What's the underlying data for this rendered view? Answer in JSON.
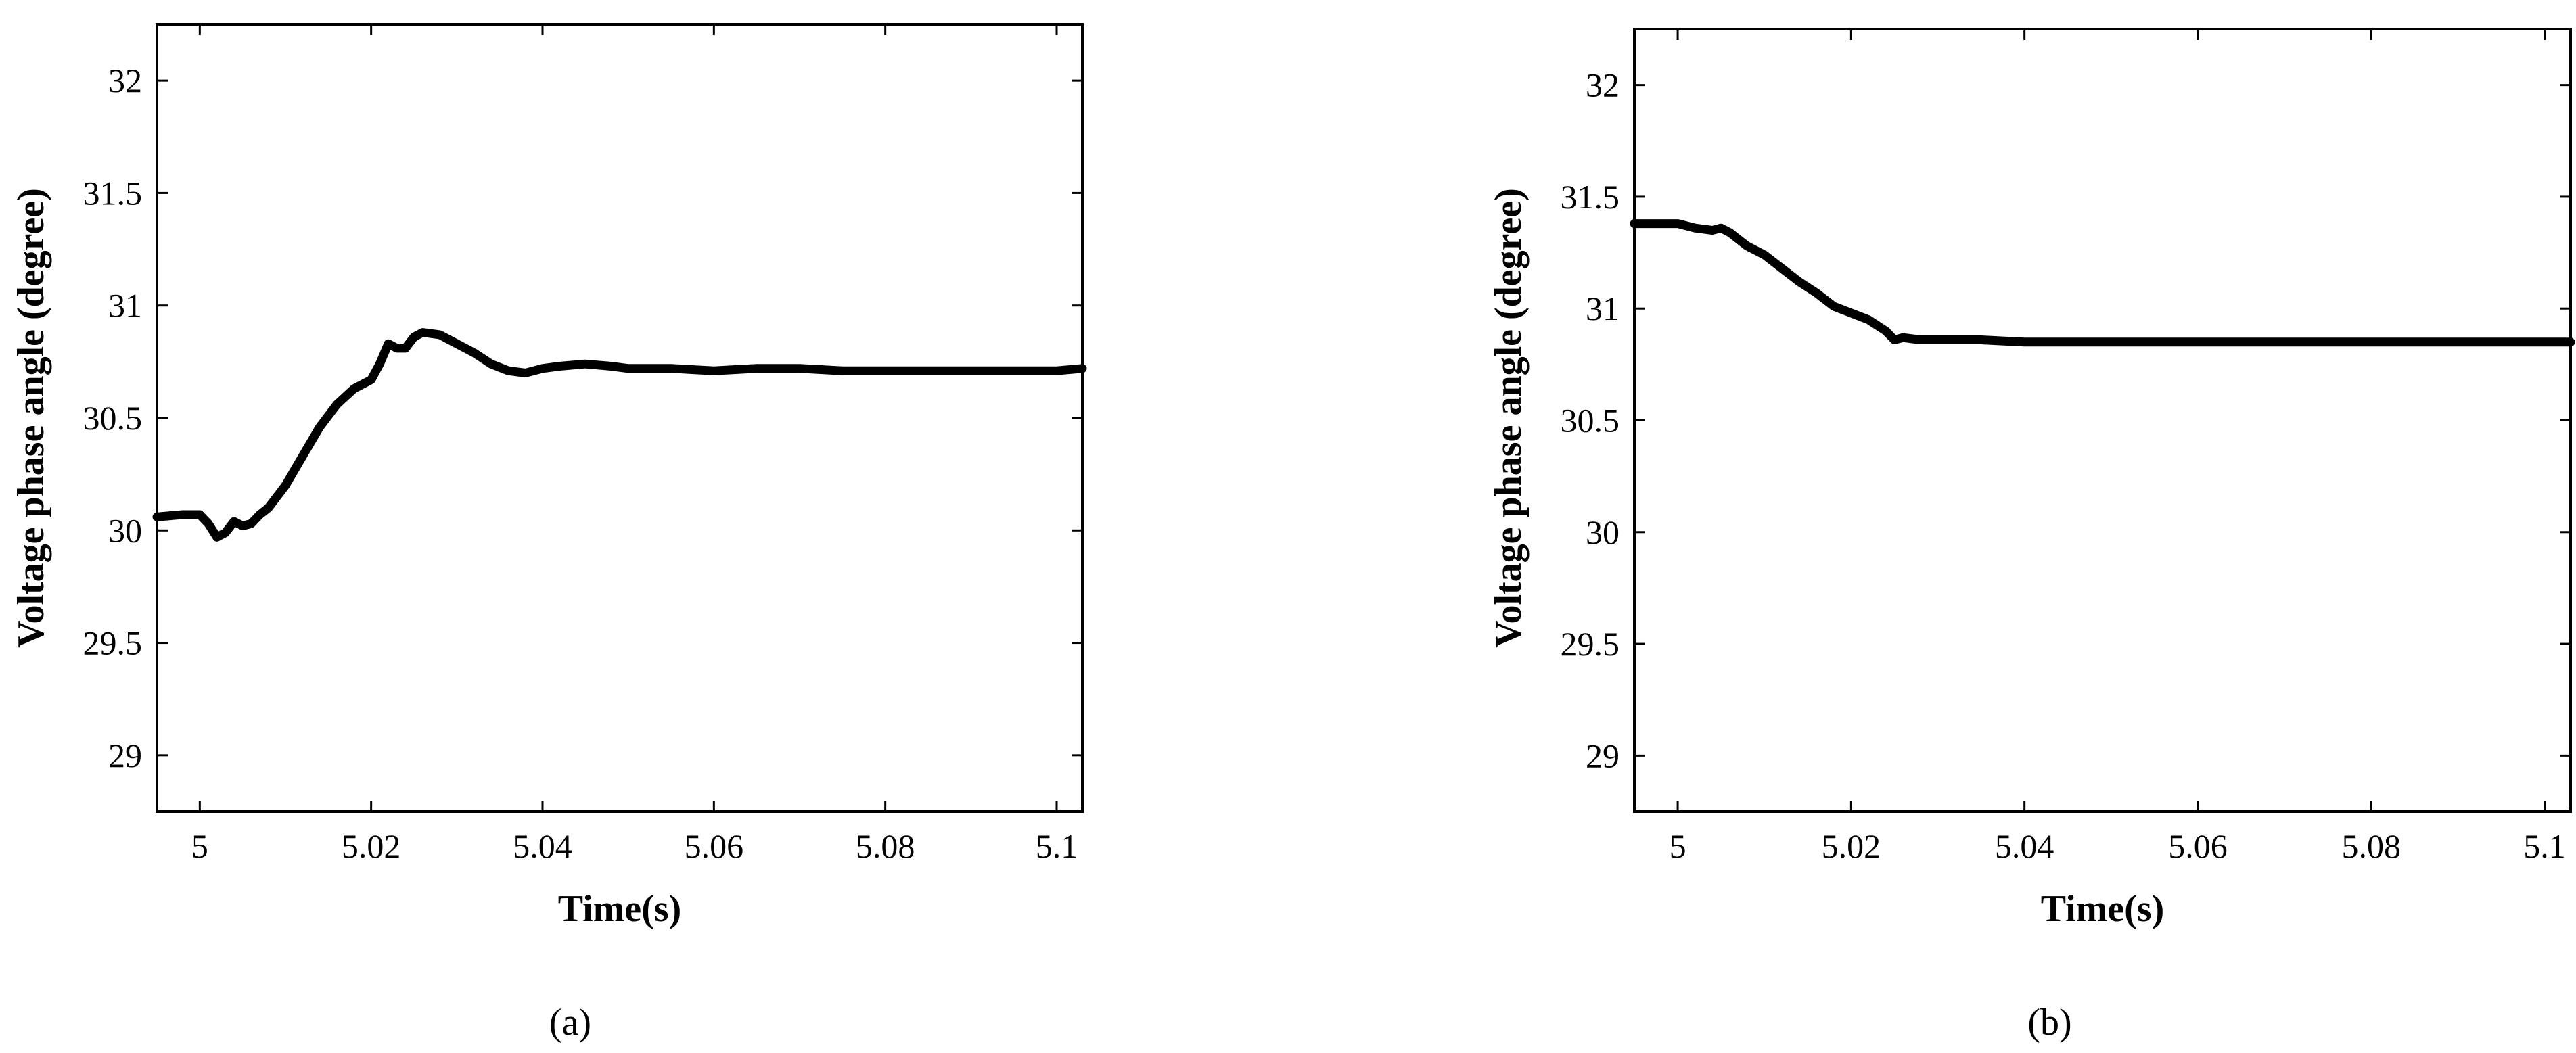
{
  "chart_data": [
    {
      "type": "line",
      "xlabel": "Time(s)",
      "ylabel": "Voltage phase angle (degree)",
      "caption": "(a)",
      "xlim": [
        4.995,
        5.103
      ],
      "ylim": [
        28.75,
        32.25
      ],
      "xticks": [
        5,
        5.02,
        5.04,
        5.06,
        5.08,
        5.1
      ],
      "xtick_labels": [
        "5",
        "5.02",
        "5.04",
        "5.06",
        "5.08",
        "5.1"
      ],
      "yticks": [
        29,
        29.5,
        30,
        30.5,
        31,
        31.5,
        32
      ],
      "ytick_labels": [
        "29",
        "29.5",
        "30",
        "30.5",
        "31",
        "31.5",
        "32"
      ],
      "grid": false,
      "series": [
        {
          "x": [
            4.995,
            4.998,
            5.0,
            5.001,
            5.002,
            5.003,
            5.004,
            5.005,
            5.006,
            5.007,
            5.008,
            5.01,
            5.012,
            5.014,
            5.016,
            5.018,
            5.02,
            5.021,
            5.022,
            5.023,
            5.024,
            5.025,
            5.026,
            5.028,
            5.03,
            5.032,
            5.034,
            5.036,
            5.038,
            5.04,
            5.042,
            5.045,
            5.048,
            5.05,
            5.055,
            5.06,
            5.065,
            5.07,
            5.075,
            5.08,
            5.085,
            5.09,
            5.095,
            5.1,
            5.103
          ],
          "y": [
            30.06,
            30.07,
            30.07,
            30.03,
            29.97,
            29.99,
            30.04,
            30.02,
            30.03,
            30.07,
            30.1,
            30.2,
            30.33,
            30.46,
            30.56,
            30.63,
            30.67,
            30.74,
            30.83,
            30.81,
            30.81,
            30.86,
            30.88,
            30.87,
            30.83,
            30.79,
            30.74,
            30.71,
            30.7,
            30.72,
            30.73,
            30.74,
            30.73,
            30.72,
            30.72,
            30.71,
            30.72,
            30.72,
            30.71,
            30.71,
            30.71,
            30.71,
            30.71,
            30.71,
            30.72
          ]
        }
      ]
    },
    {
      "type": "line",
      "xlabel": "Time(s)",
      "ylabel": "Voltage phase angle (degree)",
      "caption": "(b)",
      "xlim": [
        4.995,
        5.103
      ],
      "ylim": [
        28.75,
        32.25
      ],
      "xticks": [
        5,
        5.02,
        5.04,
        5.06,
        5.08,
        5.1
      ],
      "xtick_labels": [
        "5",
        "5.02",
        "5.04",
        "5.06",
        "5.08",
        "5.1"
      ],
      "yticks": [
        29,
        29.5,
        30,
        30.5,
        31,
        31.5,
        32
      ],
      "ytick_labels": [
        "29",
        "29.5",
        "30",
        "30.5",
        "31",
        "31.5",
        "32"
      ],
      "grid": false,
      "series": [
        {
          "x": [
            4.995,
            4.998,
            5.0,
            5.002,
            5.004,
            5.005,
            5.006,
            5.008,
            5.01,
            5.012,
            5.014,
            5.016,
            5.018,
            5.02,
            5.022,
            5.024,
            5.025,
            5.026,
            5.028,
            5.03,
            5.035,
            5.04,
            5.045,
            5.05,
            5.06,
            5.07,
            5.08,
            5.09,
            5.1,
            5.103
          ],
          "y": [
            31.38,
            31.38,
            31.38,
            31.36,
            31.35,
            31.36,
            31.34,
            31.28,
            31.24,
            31.18,
            31.12,
            31.07,
            31.01,
            30.98,
            30.95,
            30.9,
            30.86,
            30.87,
            30.86,
            30.86,
            30.86,
            30.85,
            30.85,
            30.85,
            30.85,
            30.85,
            30.85,
            30.85,
            30.85,
            30.85
          ]
        }
      ]
    }
  ]
}
